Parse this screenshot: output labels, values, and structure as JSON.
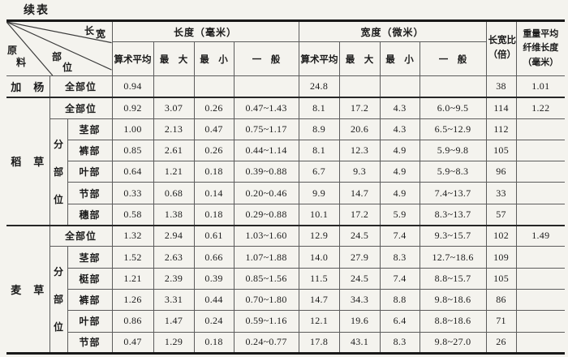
{
  "page": {
    "title": "续表"
  },
  "table": {
    "corner": {
      "axis_material": "原料",
      "axis_part": "部位",
      "axis_cols": "长宽"
    },
    "header": {
      "length_group": "长度（毫米）",
      "width_group": "宽度（微米）",
      "sub_cols": [
        "算术平均",
        "最　大",
        "最　小",
        "一　般"
      ],
      "ratio_col": [
        "长宽比",
        "（倍）"
      ],
      "weight_col": [
        "重量平均",
        "纤维长度",
        "（毫米）"
      ]
    },
    "sections": [
      {
        "material": "加　杨",
        "rows": [
          {
            "part": "全部位",
            "length": [
              "0.94",
              "",
              "",
              ""
            ],
            "width": [
              "24.8",
              "",
              "",
              ""
            ],
            "ratio": "38",
            "weight_avg": "1.01"
          }
        ]
      },
      {
        "material": "稻　草",
        "sub_group_label": "分部位",
        "rows": [
          {
            "part": "全部位",
            "length": [
              "0.92",
              "3.07",
              "0.26",
              "0.47~1.43"
            ],
            "width": [
              "8.1",
              "17.2",
              "4.3",
              "6.0~9.5"
            ],
            "ratio": "114",
            "weight_avg": "1.22"
          },
          {
            "part": "茎部",
            "length": [
              "1.00",
              "2.13",
              "0.47",
              "0.75~1.17"
            ],
            "width": [
              "8.9",
              "20.6",
              "4.3",
              "6.5~12.9"
            ],
            "ratio": "112",
            "weight_avg": ""
          },
          {
            "part": "裤部",
            "length": [
              "0.85",
              "2.61",
              "0.26",
              "0.44~1.14"
            ],
            "width": [
              "8.1",
              "12.3",
              "4.9",
              "5.9~9.8"
            ],
            "ratio": "105",
            "weight_avg": ""
          },
          {
            "part": "叶部",
            "length": [
              "0.64",
              "1.21",
              "0.18",
              "0.39~0.88"
            ],
            "width": [
              "6.7",
              "9.3",
              "4.9",
              "5.9~8.3"
            ],
            "ratio": "96",
            "weight_avg": ""
          },
          {
            "part": "节部",
            "length": [
              "0.33",
              "0.68",
              "0.14",
              "0.20~0.46"
            ],
            "width": [
              "9.9",
              "14.7",
              "4.9",
              "7.4~13.7"
            ],
            "ratio": "33",
            "weight_avg": ""
          },
          {
            "part": "穗部",
            "length": [
              "0.58",
              "1.38",
              "0.18",
              "0.29~0.88"
            ],
            "width": [
              "10.1",
              "17.2",
              "5.9",
              "8.3~13.7"
            ],
            "ratio": "57",
            "weight_avg": ""
          }
        ]
      },
      {
        "material": "麦　草",
        "sub_group_label": "分部位",
        "rows": [
          {
            "part": "全部位",
            "length": [
              "1.32",
              "2.94",
              "0.61",
              "1.03~1.60"
            ],
            "width": [
              "12.9",
              "24.5",
              "7.4",
              "9.3~15.7"
            ],
            "ratio": "102",
            "weight_avg": "1.49"
          },
          {
            "part": "茎部",
            "length": [
              "1.52",
              "2.63",
              "0.66",
              "1.07~1.88"
            ],
            "width": [
              "14.0",
              "27.9",
              "8.3",
              "12.7~18.6"
            ],
            "ratio": "109",
            "weight_avg": ""
          },
          {
            "part": "梃部",
            "length": [
              "1.21",
              "2.39",
              "0.39",
              "0.85~1.56"
            ],
            "width": [
              "11.5",
              "24.5",
              "7.4",
              "8.8~15.7"
            ],
            "ratio": "105",
            "weight_avg": ""
          },
          {
            "part": "裤部",
            "length": [
              "1.26",
              "3.31",
              "0.44",
              "0.70~1.80"
            ],
            "width": [
              "14.7",
              "34.3",
              "8.8",
              "9.8~18.6"
            ],
            "ratio": "86",
            "weight_avg": ""
          },
          {
            "part": "叶部",
            "length": [
              "0.86",
              "1.47",
              "0.24",
              "0.59~1.16"
            ],
            "width": [
              "12.1",
              "19.6",
              "6.4",
              "8.8~18.6"
            ],
            "ratio": "71",
            "weight_avg": ""
          },
          {
            "part": "节部",
            "length": [
              "0.47",
              "1.29",
              "0.18",
              "0.24~0.77"
            ],
            "width": [
              "17.8",
              "43.1",
              "8.3",
              "9.8~27.0"
            ],
            "ratio": "26",
            "weight_avg": ""
          }
        ]
      }
    ]
  }
}
